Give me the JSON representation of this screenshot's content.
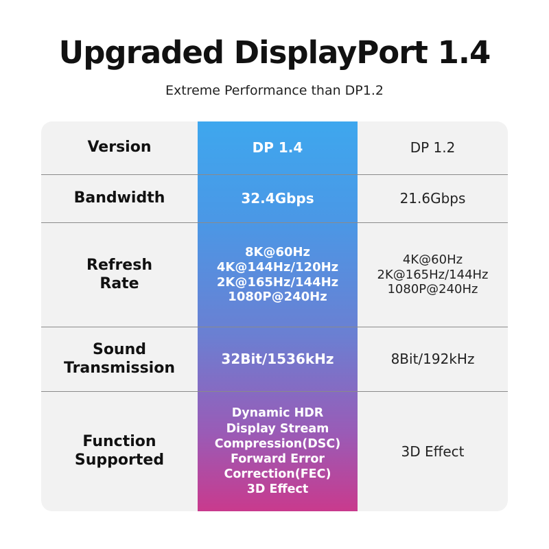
{
  "header": {
    "title": "Upgraded DisplayPort 1.4",
    "subtitle": "Extreme Performance than DP1.2"
  },
  "colors": {
    "gradient_top": "#3ea7ee",
    "gradient_bottom": "#c93a8d",
    "table_bg": "#f2f2f2"
  },
  "table": {
    "rows": [
      {
        "label": "Version",
        "dp14": "DP 1.4",
        "dp12": "DP 1.2"
      },
      {
        "label": "Bandwidth",
        "dp14": "32.4Gbps",
        "dp12": "21.6Gbps"
      },
      {
        "label": "Refresh\nRate",
        "dp14": "8K@60Hz\n4K@144Hz/120Hz\n2K@165Hz/144Hz\n1080P@240Hz",
        "dp12": "4K@60Hz\n2K@165Hz/144Hz\n1080P@240Hz"
      },
      {
        "label": "Sound\nTransmission",
        "dp14": "32Bit/1536kHz",
        "dp12": "8Bit/192kHz"
      },
      {
        "label": "Function\nSupported",
        "dp14": "Dynamic HDR\nDisplay Stream\nCompression(DSC)\nForward Error\nCorrection(FEC)\n3D Effect",
        "dp12": "3D Effect"
      }
    ]
  }
}
